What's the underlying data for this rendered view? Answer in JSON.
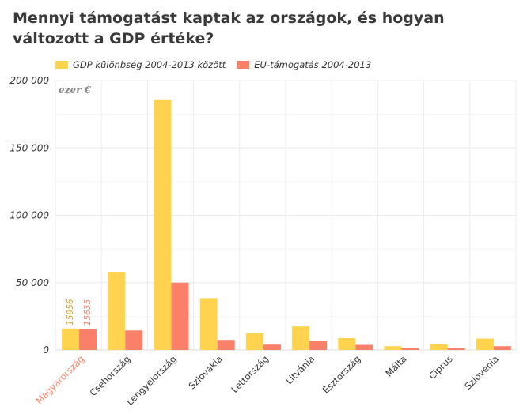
{
  "chart_data": {
    "type": "bar",
    "title": "Mennyi támogatást kaptak az országok, és hogyan változott a GDP értéke?",
    "unit_label": "ezer €",
    "categories": [
      "Magyarország",
      "Csehország",
      "Lengyelország",
      "Szlovákia",
      "Lettország",
      "Litvánia",
      "Észtország",
      "Málta",
      "Ciprus",
      "Szlovénia"
    ],
    "highlight_category": "Magyarország",
    "series": [
      {
        "name": "GDP különbség 2004-2013 között",
        "color": "#FFD34E",
        "values": [
          15956,
          58000,
          186000,
          38500,
          12500,
          17500,
          8800,
          2800,
          4200,
          8500
        ]
      },
      {
        "name": "EU-támogatás 2004-2013",
        "color": "#FA8069",
        "values": [
          15635,
          14500,
          50000,
          7500,
          4000,
          6500,
          3800,
          1200,
          1200,
          2800
        ]
      }
    ],
    "data_labels": [
      {
        "category": "Magyarország",
        "series": 0,
        "text": "15956"
      },
      {
        "category": "Magyarország",
        "series": 1,
        "text": "15635"
      }
    ],
    "ylim": [
      0,
      200000
    ],
    "yticks": [
      0,
      50000,
      100000,
      150000,
      200000
    ],
    "ytick_labels": [
      "0",
      "50 000",
      "100 000",
      "150 000",
      "200 000"
    ],
    "highlight_color": "#FA8069",
    "grid": true,
    "legend_position": "top-left"
  }
}
